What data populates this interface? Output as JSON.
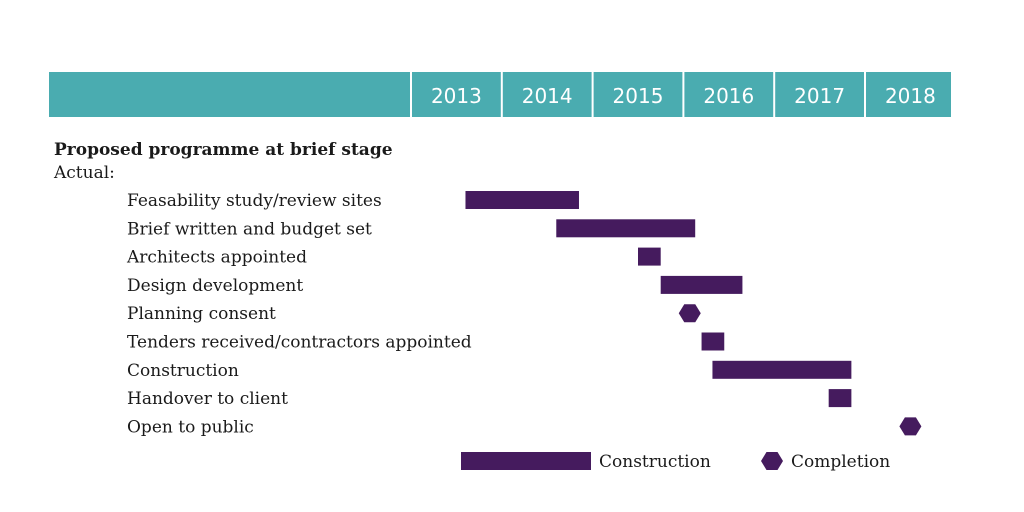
{
  "colors": {
    "header": "#4aacb0",
    "bar": "#451b5e",
    "divider": "#ffffff",
    "text": "#1a1a1a"
  },
  "chart_data": {
    "type": "gantt",
    "x_axis": {
      "unit": "year",
      "start": 2013,
      "end": 2019,
      "tick_labels": [
        "2013",
        "2014",
        "2015",
        "2016",
        "2017",
        "2018"
      ]
    },
    "header_text": "Proposed programme at brief stage",
    "sub_header_text": "Actual:",
    "tasks": [
      {
        "label": "Feasability study/review sites",
        "type": "bar",
        "start": 2013.6,
        "end": 2014.85
      },
      {
        "label": "Brief written and budget set",
        "type": "bar",
        "start": 2014.6,
        "end": 2016.13
      },
      {
        "label": "Architects appointed",
        "type": "bar",
        "start": 2015.5,
        "end": 2015.75
      },
      {
        "label": "Design development",
        "type": "bar",
        "start": 2015.75,
        "end": 2016.65
      },
      {
        "label": "Planning consent",
        "type": "milestone",
        "at": 2016.07
      },
      {
        "label": "Tenders received/contractors appointed",
        "type": "bar",
        "start": 2016.2,
        "end": 2016.45
      },
      {
        "label": "Construction",
        "type": "bar",
        "start": 2016.32,
        "end": 2017.85
      },
      {
        "label": "Handover to client",
        "type": "bar",
        "start": 2017.6,
        "end": 2017.85
      },
      {
        "label": "Open to public",
        "type": "milestone",
        "at": 2018.5
      }
    ],
    "legend": {
      "placement": "bottom",
      "items": [
        {
          "label": "Construction",
          "symbol": "bar"
        },
        {
          "label": "Completion",
          "symbol": "hexagon"
        }
      ]
    }
  }
}
